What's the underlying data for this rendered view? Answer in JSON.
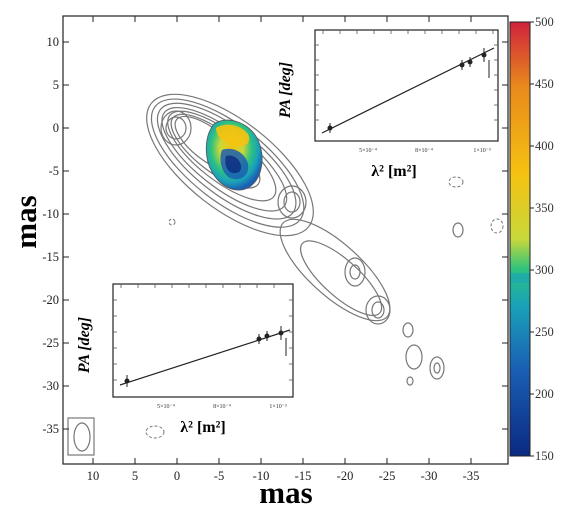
{
  "figure": {
    "xlabel": "mas",
    "ylabel": "mas",
    "x_ticks": [
      "10",
      "5",
      "0",
      "-5",
      "-10",
      "-15",
      "-20",
      "-25",
      "-30",
      "-35"
    ],
    "y_ticks": [
      "10",
      "5",
      "0",
      "-5",
      "-10",
      "-15",
      "-20",
      "-25",
      "-30",
      "-35"
    ],
    "colorbar": {
      "ticks": [
        "500",
        "450",
        "400",
        "350",
        "300",
        "250",
        "200",
        "150"
      ],
      "range": [
        150,
        500
      ],
      "stops": [
        "#0a2a80",
        "#1a5fb4",
        "#1aa3b8",
        "#2ec27e",
        "#c8d83a",
        "#f5c211",
        "#e88a1c",
        "#d0223c"
      ]
    },
    "insets": [
      {
        "ylabel": "PA [deg]",
        "xlabel": "λ² [m²]",
        "xticks": [
          "5×10⁻⁴",
          "8×10⁻⁴",
          "1×10⁻³"
        ]
      },
      {
        "ylabel": "PA [deg]",
        "xlabel": "λ² [m²]",
        "xticks": [
          "5×10⁻⁴",
          "8×10⁻⁴",
          "1×10⁻³"
        ]
      }
    ]
  },
  "chart_data": {
    "type": "heatmap",
    "title": "",
    "xlabel": "mas",
    "ylabel": "mas",
    "xlim": [
      12,
      -40
    ],
    "ylim": [
      -38,
      12
    ],
    "x_axis_reversed": true,
    "colorbar_range": [
      150,
      500
    ],
    "colorbar_ticks": [
      500,
      450,
      400,
      350,
      300,
      250,
      200,
      150
    ],
    "contour_peaks_mas": [
      {
        "x": 0,
        "y": 0
      },
      {
        "x": -6,
        "y": -3
      },
      {
        "x": -13,
        "y": -9
      }
    ],
    "insets": [
      {
        "type": "scatter",
        "xlabel": "λ² [m²]",
        "ylabel": "PA [deg]",
        "fit": "linear"
      },
      {
        "type": "scatter",
        "xlabel": "λ² [m²]",
        "ylabel": "PA [deg]",
        "fit": "linear"
      }
    ]
  }
}
